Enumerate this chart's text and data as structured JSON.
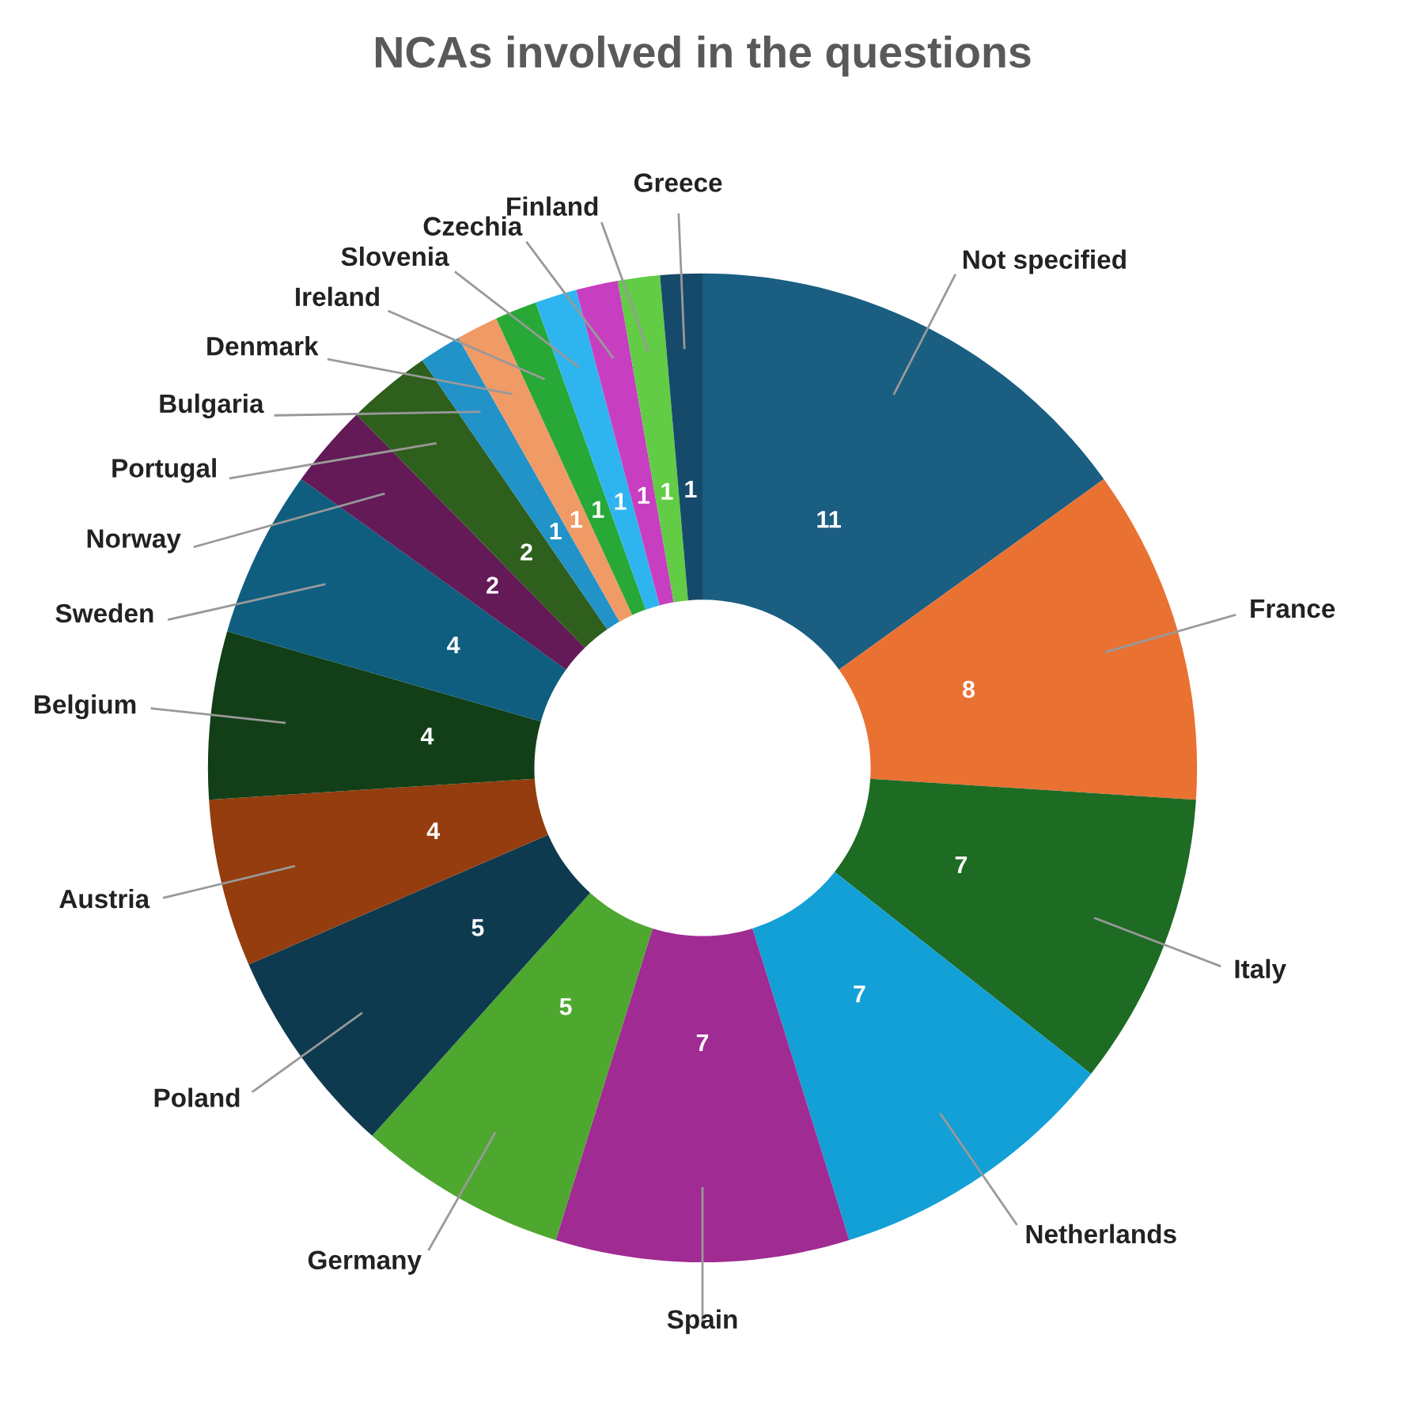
{
  "chart_data": {
    "type": "donut",
    "title": "NCAs involved in the questions",
    "categories": [
      "Not specified",
      "France",
      "Italy",
      "Netherlands",
      "Spain",
      "Germany",
      "Poland",
      "Austria",
      "Belgium",
      "Sweden",
      "Norway",
      "Portugal",
      "Bulgaria",
      "Denmark",
      "Ireland",
      "Slovenia",
      "Czechia",
      "Finland",
      "Greece"
    ],
    "values": [
      11,
      8,
      7,
      7,
      7,
      5,
      5,
      4,
      4,
      4,
      2,
      2,
      1,
      1,
      1,
      1,
      1,
      1,
      1
    ],
    "colors": [
      "#1a5e82",
      "#e97132",
      "#1e6b24",
      "#12a0d7",
      "#a02b93",
      "#4ea72e",
      "#0e3a50",
      "#953d0f",
      "#123f18",
      "#0f5e7f",
      "#631a57",
      "#2e5f1c",
      "#2193c8",
      "#f09a66",
      "#28a836",
      "#2eb5ef",
      "#c83ec0",
      "#62cc45",
      "#164a6a"
    ],
    "data_labels": true,
    "legend": false
  }
}
